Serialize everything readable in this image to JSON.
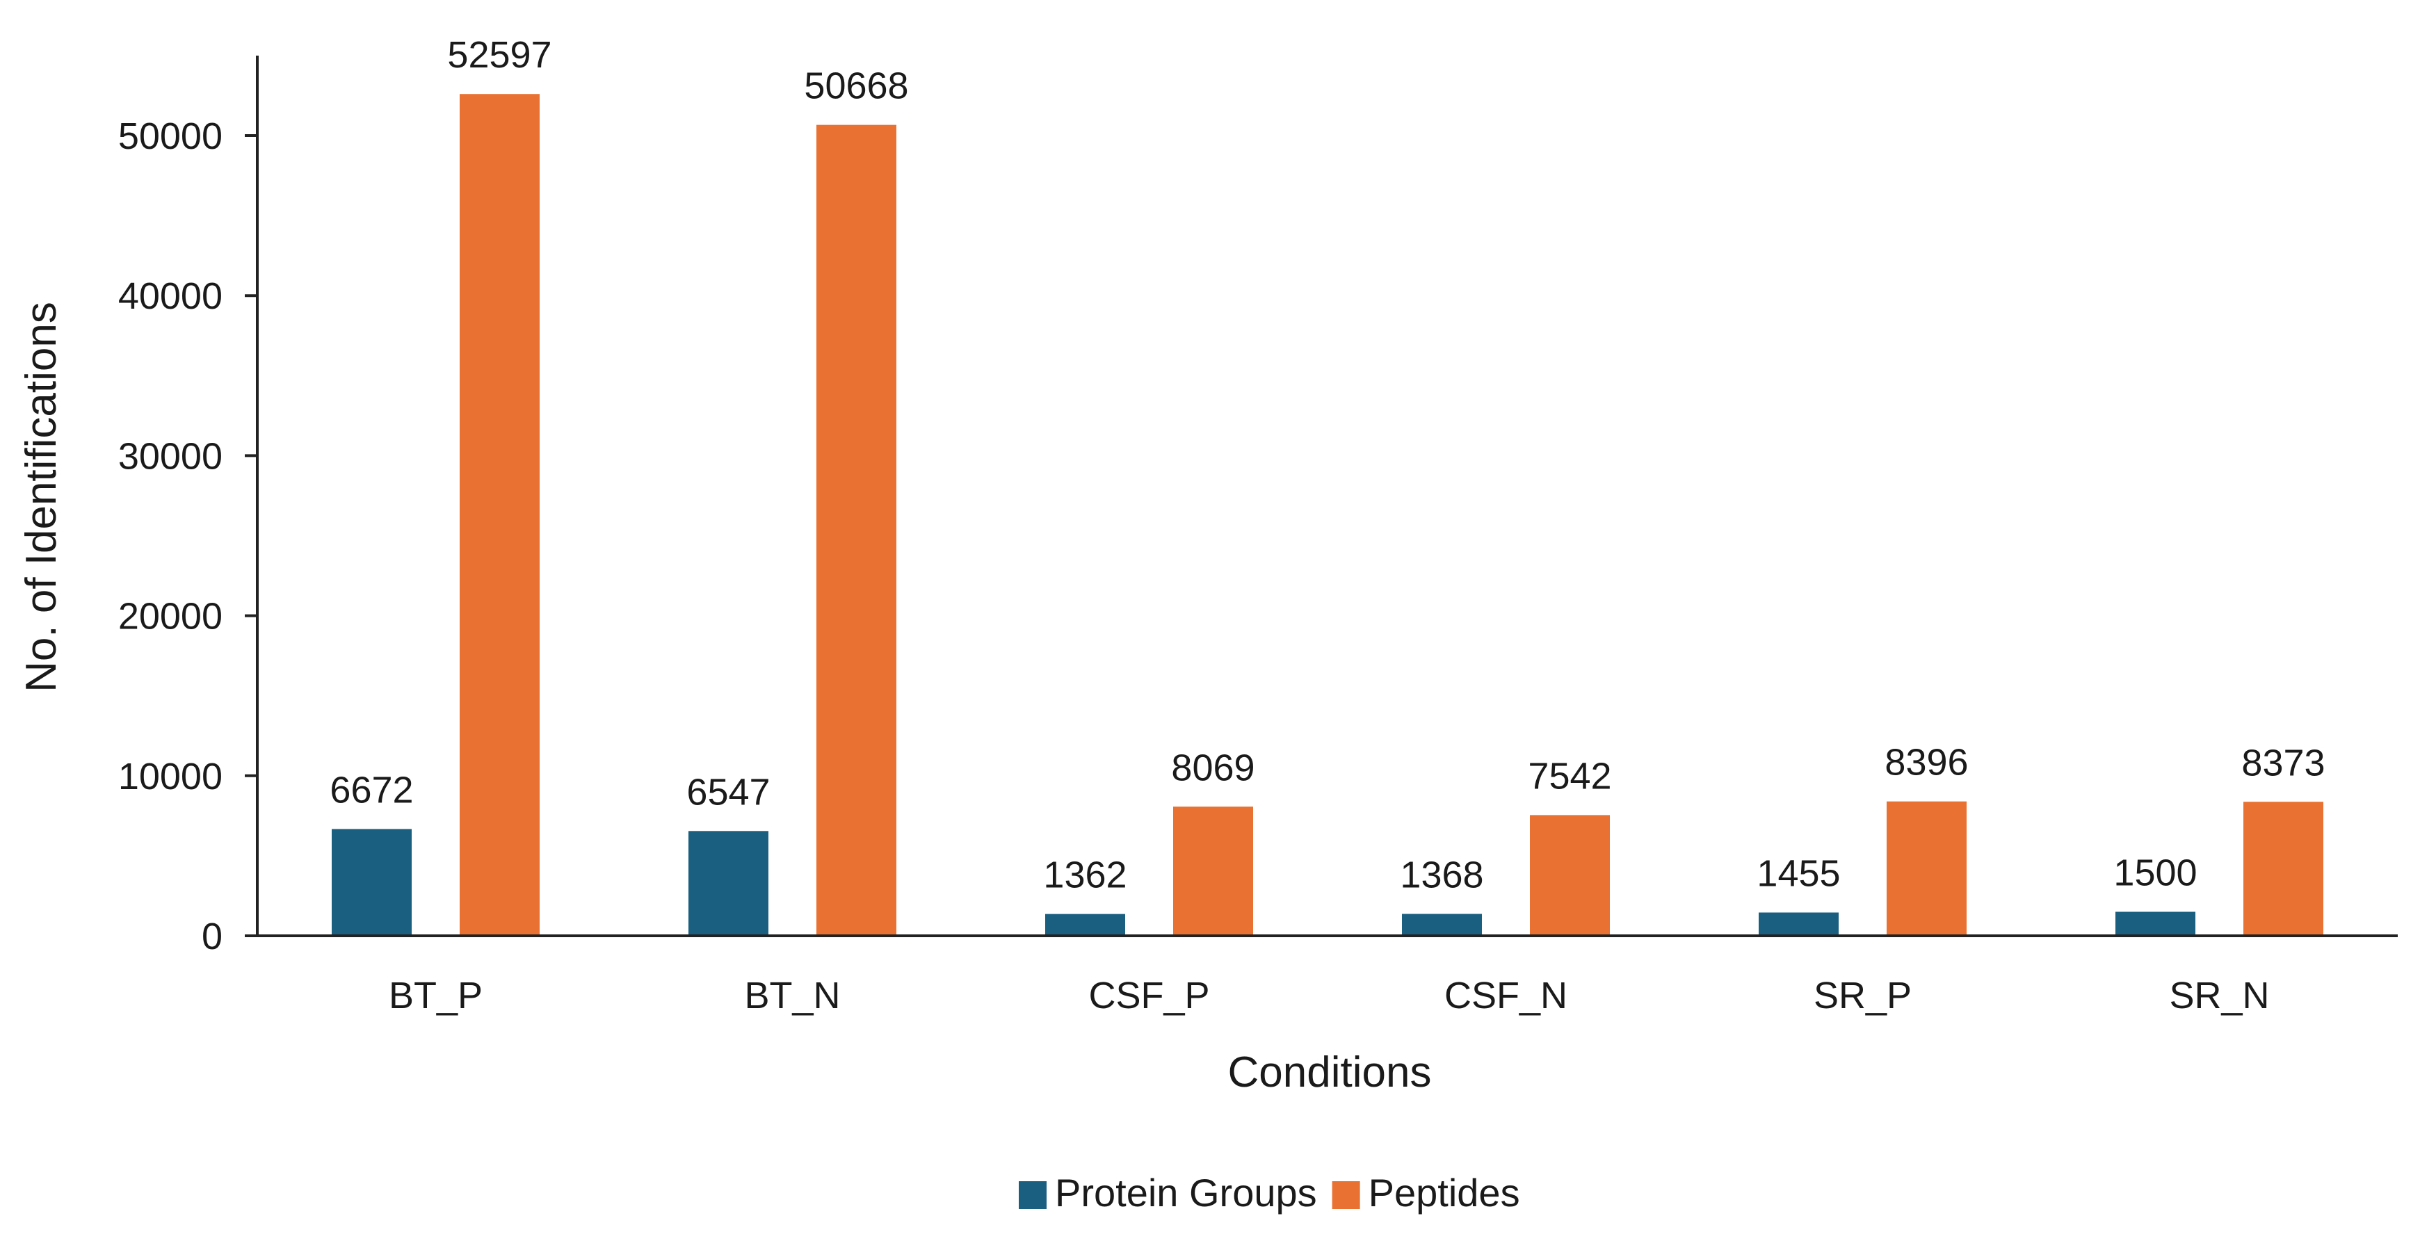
{
  "chart_data": {
    "type": "bar",
    "title": "",
    "xlabel": "Conditions",
    "ylabel": "No. of Identifications",
    "categories": [
      "BT_P",
      "BT_N",
      "CSF_P",
      "CSF_N",
      "SR_P",
      "SR_N"
    ],
    "series": [
      {
        "name": "Protein Groups",
        "color": "#1a5f80",
        "values": [
          6672,
          6547,
          1362,
          1368,
          1455,
          1500
        ]
      },
      {
        "name": "Peptides",
        "color": "#e97132",
        "values": [
          52597,
          50668,
          8069,
          7542,
          8396,
          8373
        ]
      }
    ],
    "ylim": [
      0,
      55000
    ],
    "yticks": [
      0,
      10000,
      20000,
      30000,
      40000,
      50000
    ],
    "grid": false,
    "data_labels": true,
    "legend_position": "bottom"
  }
}
